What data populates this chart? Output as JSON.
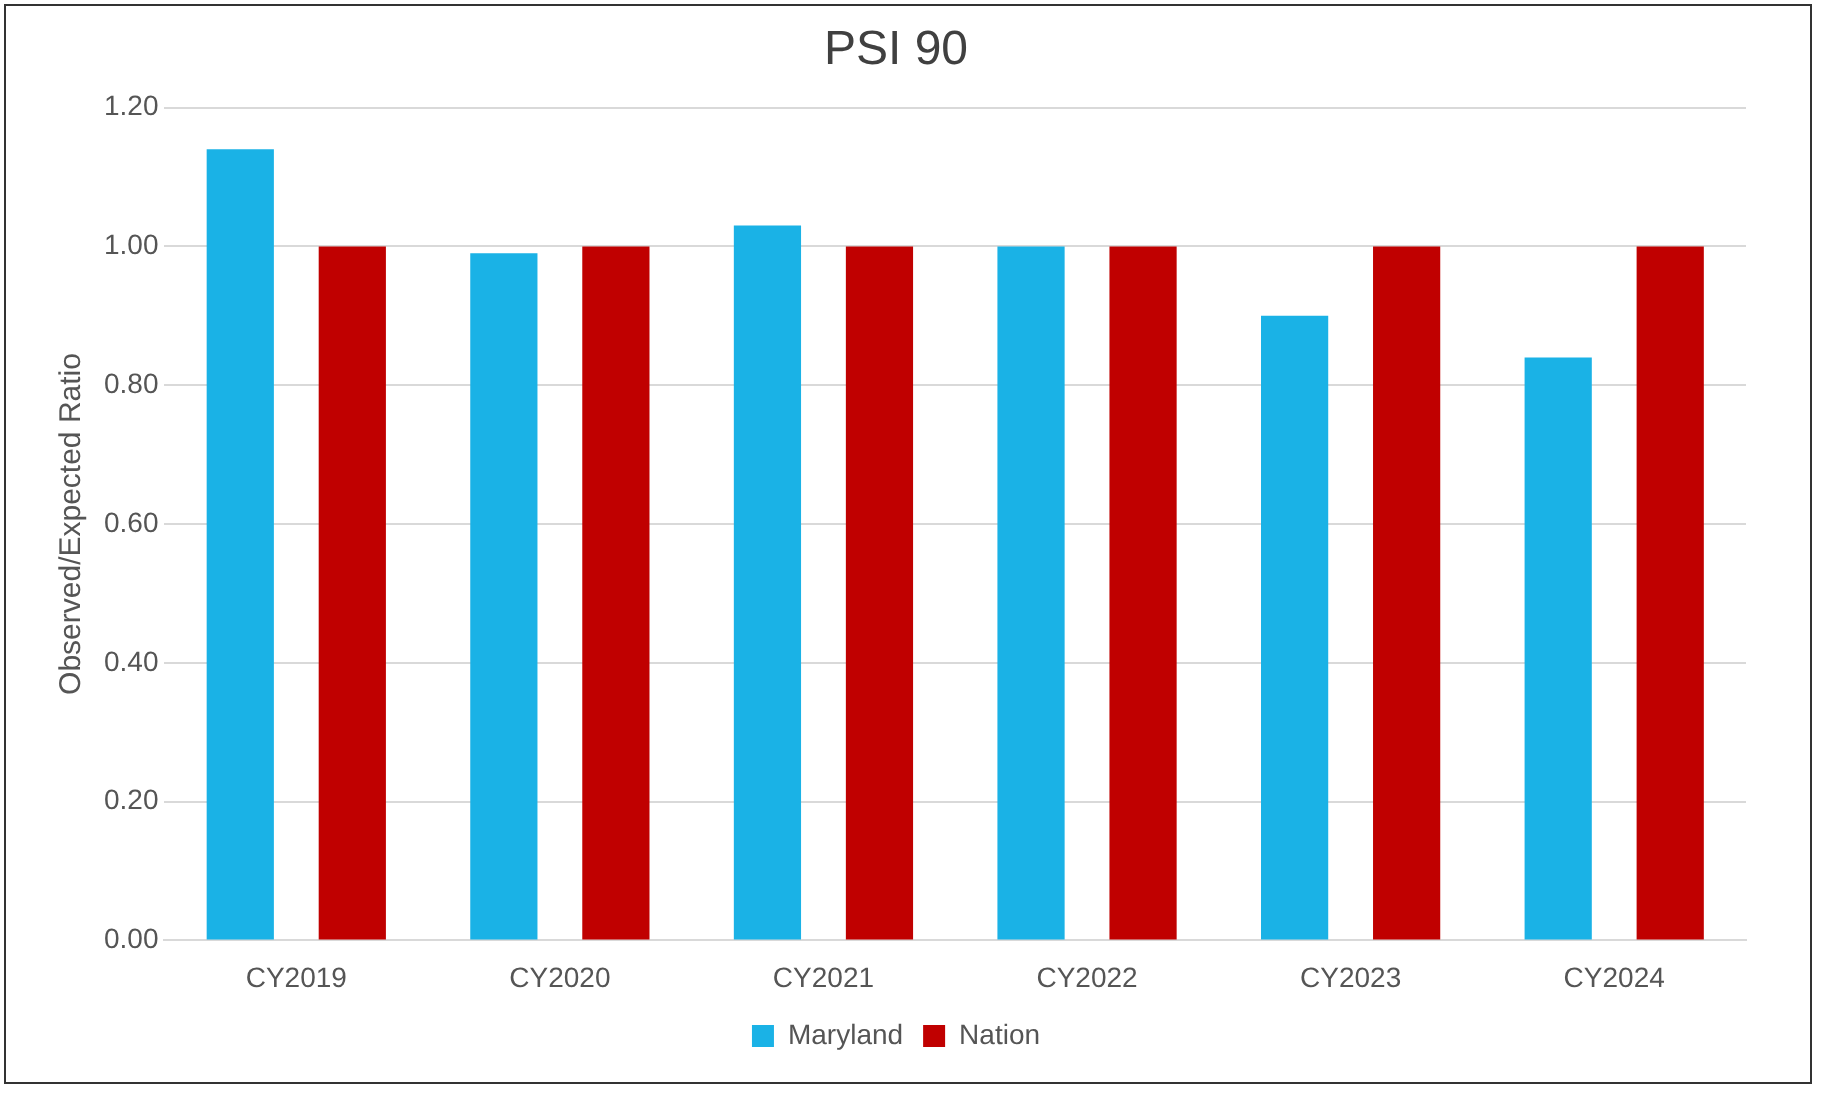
{
  "chart_data": {
    "type": "bar",
    "title": "PSI 90",
    "ylabel": "Observed/Expected Ratio",
    "categories": [
      "CY2019",
      "CY2020",
      "CY2021",
      "CY2022",
      "CY2023",
      "CY2024"
    ],
    "series": [
      {
        "name": "Maryland",
        "color": "#1ab2e6",
        "values": [
          1.14,
          0.99,
          1.03,
          1.0,
          0.9,
          0.84
        ]
      },
      {
        "name": "Nation",
        "color": "#c00000",
        "values": [
          1.0,
          1.0,
          1.0,
          1.0,
          1.0,
          1.0
        ]
      }
    ],
    "ylim": [
      0,
      1.2
    ],
    "yticks": [
      {
        "value": 0,
        "label": "0.00"
      },
      {
        "value": 0.2,
        "label": "0.20"
      },
      {
        "value": 0.4,
        "label": "0.40"
      },
      {
        "value": 0.6,
        "label": "0.60"
      },
      {
        "value": 0.8,
        "label": "0.80"
      },
      {
        "value": 1,
        "label": "1.00"
      },
      {
        "value": 1.2,
        "label": "1.20"
      }
    ],
    "grid": "y",
    "legend": "bottom"
  }
}
